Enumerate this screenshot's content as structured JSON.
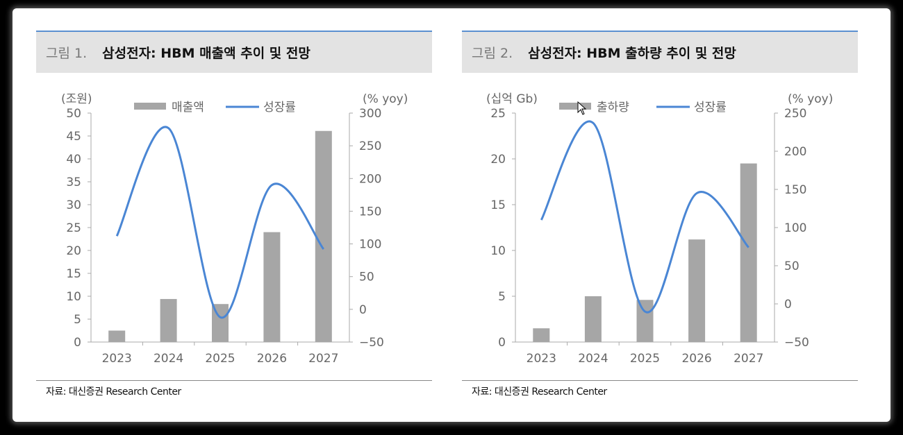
{
  "chart_data": [
    {
      "type": "bar+line",
      "figure_label": "그림 1.",
      "title": "삼성전자: HBM 매출액 추이 및 전망",
      "categories": [
        "2023",
        "2024",
        "2025",
        "2026",
        "2027"
      ],
      "ylabel": "(조원)",
      "y2label": "(% yoy)",
      "ylim": [
        0,
        50
      ],
      "yticks": [
        0,
        5,
        10,
        15,
        20,
        25,
        30,
        35,
        40,
        45,
        50
      ],
      "y2lim": [
        -50,
        300
      ],
      "y2ticks": [
        -50,
        0,
        50,
        100,
        150,
        200,
        250,
        300
      ],
      "series": [
        {
          "name": "매출액",
          "type": "bar",
          "axis": "left",
          "color": "#a6a6a6",
          "values": [
            2.5,
            9.4,
            8.3,
            24.0,
            46.1
          ]
        },
        {
          "name": "성장률",
          "type": "line",
          "axis": "right",
          "color": "#4a86d4",
          "values": [
            112,
            277,
            -12,
            190,
            92
          ]
        }
      ],
      "legend": "top-center",
      "source": "자료: 대신증권 Research Center"
    },
    {
      "type": "bar+line",
      "figure_label": "그림 2.",
      "title": "삼성전자: HBM 출하량 추이 및 전망",
      "categories": [
        "2023",
        "2024",
        "2025",
        "2026",
        "2027"
      ],
      "ylabel": "(십억 Gb)",
      "y2label": "(% yoy)",
      "ylim": [
        0,
        25
      ],
      "yticks": [
        0,
        5,
        10,
        15,
        20,
        25
      ],
      "y2lim": [
        -50,
        250
      ],
      "y2ticks": [
        -50,
        0,
        50,
        100,
        150,
        200,
        250
      ],
      "series": [
        {
          "name": "출하량",
          "type": "bar",
          "axis": "left",
          "color": "#a6a6a6",
          "values": [
            1.5,
            5.0,
            4.6,
            11.2,
            19.5
          ]
        },
        {
          "name": "성장률",
          "type": "line",
          "axis": "right",
          "color": "#4a86d4",
          "values": [
            110,
            237,
            -10,
            145,
            74
          ]
        }
      ],
      "legend": "top-center",
      "source": "자료: 대신증권 Research Center"
    }
  ]
}
